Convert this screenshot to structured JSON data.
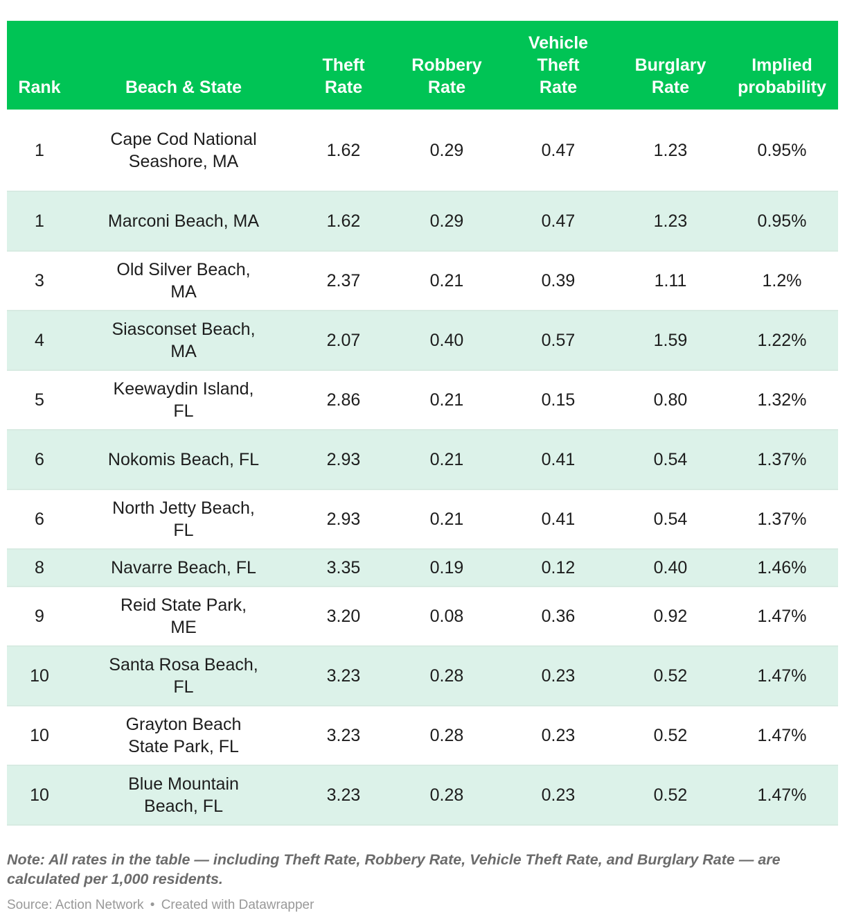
{
  "chart_data": {
    "type": "table",
    "columns": [
      "Rank",
      "Beach & State",
      "Theft\nRate",
      "Robbery\nRate",
      "Vehicle\nTheft\nRate",
      "Burglary\nRate",
      "Implied\nprobability"
    ],
    "rows": [
      [
        "1",
        "Cape Cod National Seashore, MA",
        "1.62",
        "0.29",
        "0.47",
        "1.23",
        "0.95%"
      ],
      [
        "1",
        "Marconi Beach, MA",
        "1.62",
        "0.29",
        "0.47",
        "1.23",
        "0.95%"
      ],
      [
        "3",
        "Old Silver Beach, MA",
        "2.37",
        "0.21",
        "0.39",
        "1.11",
        "1.2%"
      ],
      [
        "4",
        "Siasconset Beach, MA",
        "2.07",
        "0.40",
        "0.57",
        "1.59",
        "1.22%"
      ],
      [
        "5",
        "Keewaydin Island, FL",
        "2.86",
        "0.21",
        "0.15",
        "0.80",
        "1.32%"
      ],
      [
        "6",
        "Nokomis Beach, FL",
        "2.93",
        "0.21",
        "0.41",
        "0.54",
        "1.37%"
      ],
      [
        "6",
        "North Jetty Beach, FL",
        "2.93",
        "0.21",
        "0.41",
        "0.54",
        "1.37%"
      ],
      [
        "8",
        "Navarre Beach, FL",
        "3.35",
        "0.19",
        "0.12",
        "0.40",
        "1.46%"
      ],
      [
        "9",
        "Reid State Park, ME",
        "3.20",
        "0.08",
        "0.36",
        "0.92",
        "1.47%"
      ],
      [
        "10",
        "Santa Rosa Beach, FL",
        "3.23",
        "0.28",
        "0.23",
        "0.52",
        "1.47%"
      ],
      [
        "10",
        "Grayton Beach State Park, FL",
        "3.23",
        "0.28",
        "0.23",
        "0.52",
        "1.47%"
      ],
      [
        "10",
        "Blue Mountain Beach, FL",
        "3.23",
        "0.28",
        "0.23",
        "0.52",
        "1.47%"
      ]
    ]
  },
  "note": "Note: All rates in the table — including Theft Rate, Robbery Rate, Vehicle Theft Rate, and Burglary Rate — are calculated per 1,000 residents.",
  "footer": {
    "source": "Source: Action Network",
    "separator": "•",
    "credit": "Created with Datawrapper"
  },
  "colors": {
    "header_bg": "#00c455",
    "header_text": "#ffffff",
    "stripe": "#dcf2e9",
    "row_divider": "#d7ebe2",
    "note_text": "#6b6b6b",
    "source_text": "#999999"
  }
}
